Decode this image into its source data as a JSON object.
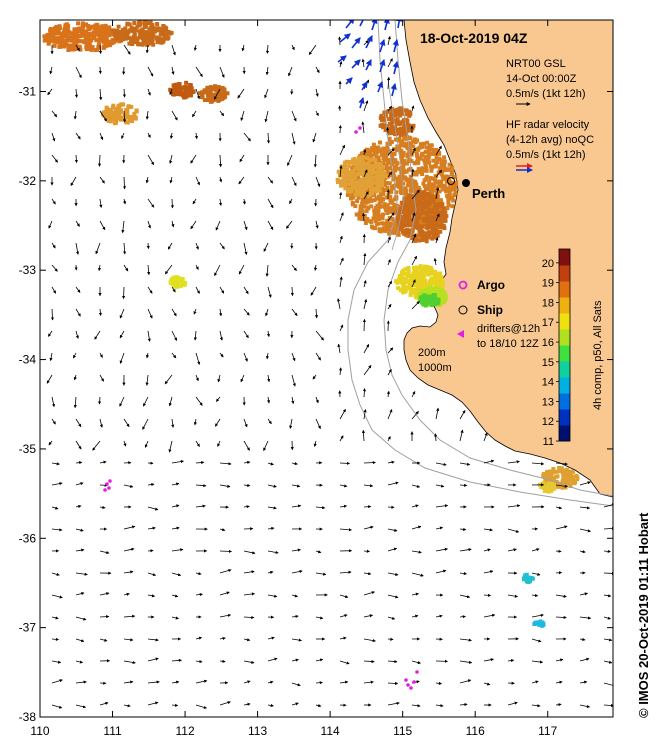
{
  "map": {
    "title": "18-Oct-2019 04Z",
    "lon_ticks": [
      "110",
      "111",
      "112",
      "113",
      "114",
      "115",
      "116",
      "117"
    ],
    "lat_ticks": [
      "-31",
      "-32",
      "-33",
      "-34",
      "-35",
      "-36",
      "-37",
      "-38"
    ],
    "lon_range": [
      110,
      117.9
    ],
    "lat_range": [
      -38,
      -30.2
    ],
    "land_color": "#f9c891",
    "arrow_color": "#000000",
    "radar_arrow_color": "#1030d0",
    "contour_color": "#a0a0a0"
  },
  "legend": {
    "model_name": "NRT00 GSL",
    "model_time": "14-Oct 00:00Z",
    "model_scale": "0.5m/s (1kt 12h)",
    "radar_title": "HF radar velocity",
    "radar_subtitle": "(4-12h avg) noQC",
    "radar_scale": "0.5m/s (1kt 12h)",
    "radar_colors": [
      "#e02020",
      "#1030d0"
    ]
  },
  "markers": {
    "argo_label": "Argo",
    "argo_color": "#e020e0",
    "ship_label": "Ship",
    "drifter_label_line1": "drifters@12h",
    "drifter_label_line2": "to 18/10 12Z",
    "drifter_color": "#e020e0"
  },
  "places": {
    "city": "Perth",
    "city_lon": 115.86,
    "city_lat": -31.95
  },
  "contours": {
    "label_200": "200m",
    "label_1000": "1000m"
  },
  "colorbar": {
    "title": "4h comp, p50, All Sats",
    "ticks": [
      "11",
      "12",
      "13",
      "14",
      "15",
      "16",
      "17",
      "18",
      "19",
      "20"
    ],
    "min": 11,
    "max": 20.7,
    "colors": [
      "#001070",
      "#0030c0",
      "#0070e0",
      "#00b0e0",
      "#10d0a0",
      "#40e040",
      "#b0e020",
      "#f0e010",
      "#f0b010",
      "#e07010",
      "#c04010",
      "#801010"
    ]
  },
  "credit": "© IMOS 20-Oct-2019 01:11 Hobart"
}
